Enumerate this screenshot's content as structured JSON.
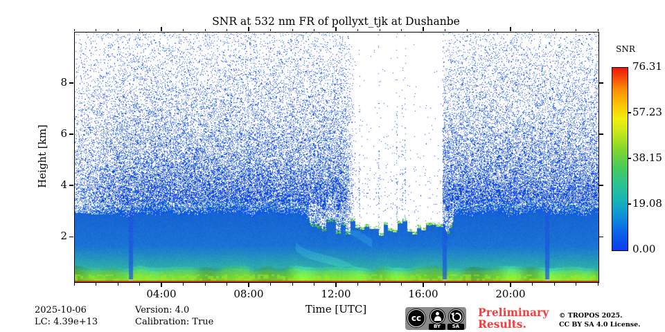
{
  "title": "SNR at 532 nm FR of pollyxt_tjk at Dushanbe",
  "axes": {
    "x": {
      "label": "Time [UTC]",
      "range_hours": [
        0,
        24
      ],
      "minor_tick_every_hours": 1,
      "major_ticks": [
        {
          "hour": 4,
          "label": "04:00"
        },
        {
          "hour": 8,
          "label": "08:00"
        },
        {
          "hour": 12,
          "label": "12:00"
        },
        {
          "hour": 16,
          "label": "16:00"
        },
        {
          "hour": 20,
          "label": "20:00"
        }
      ]
    },
    "y": {
      "label": "Height [km]",
      "range_km": [
        0.25,
        10
      ],
      "major_ticks": [
        {
          "km": 2,
          "label": "2"
        },
        {
          "km": 4,
          "label": "4"
        },
        {
          "km": 6,
          "label": "6"
        },
        {
          "km": 8,
          "label": "8"
        }
      ]
    }
  },
  "colorbar": {
    "label": "SNR",
    "min": 0,
    "max": 76.31,
    "ticks": [
      {
        "value": 76.31,
        "label": "76.31"
      },
      {
        "value": 57.23,
        "label": "57.23"
      },
      {
        "value": 38.15,
        "label": "38.15"
      },
      {
        "value": 19.08,
        "label": "19.08"
      },
      {
        "value": 0,
        "label": "0.00"
      }
    ],
    "gradient_stops": [
      {
        "frac": 0.0,
        "color": "#0a3df0"
      },
      {
        "frac": 0.1,
        "color": "#0a63e8"
      },
      {
        "frac": 0.2,
        "color": "#0f97d5"
      },
      {
        "frac": 0.28,
        "color": "#18b4b4"
      },
      {
        "frac": 0.36,
        "color": "#2cc293"
      },
      {
        "frac": 0.45,
        "color": "#45cb5c"
      },
      {
        "frac": 0.55,
        "color": "#7fd62e"
      },
      {
        "frac": 0.65,
        "color": "#c8e81a"
      },
      {
        "frac": 0.72,
        "color": "#f2ee0e"
      },
      {
        "frac": 0.8,
        "color": "#fbc206"
      },
      {
        "frac": 0.88,
        "color": "#fb8e06"
      },
      {
        "frac": 0.94,
        "color": "#f4500a"
      },
      {
        "frac": 1.0,
        "color": "#e91804"
      }
    ]
  },
  "footer": {
    "date": "2025-10-06",
    "lidar_constant": "LC: 4.39e+13",
    "version": "Version: 4.0",
    "calibration": "Calibration: True",
    "preliminary_line1": "Preliminary",
    "preliminary_line2": "Results.",
    "preliminary_color": "#fa3c3c",
    "copyright_line1": "© TROPOS 2025.",
    "copyright_line2": "CC BY SA 4.0 License."
  },
  "cc_badge": {
    "cc_label": "cc",
    "by_label": "BY",
    "sa_label": "SA"
  },
  "chart_data": {
    "type": "heatmap",
    "title": "SNR at 532 nm FR of pollyxt_tjk at Dushanbe",
    "xlabel": "Time [UTC]",
    "ylabel": "Height [km]",
    "x": {
      "unit": "hours UTC",
      "min": 0,
      "max": 24
    },
    "y": {
      "unit": "km",
      "min": 0.25,
      "max": 10
    },
    "value": {
      "name": "SNR",
      "min": 0,
      "max": 76.31
    },
    "description": "Lidar signal-to-noise ratio over one day; strong near-ground aerosol return (green/yellow below ~1 km, thin red ground line), solid low-SNR blue up to ~2.8 km, blue speckle noise above, cloud layer with green tops near 2-2.6 km between ~10:45 and ~17:20, near-blank daylight period ~13:00-16:50, and three dark-blue depolarization-calibration stripes.",
    "features": {
      "calibration_stripe_hours": [
        2.54,
        16.95,
        21.62
      ],
      "stripe_halfwidth_hours": 0.095,
      "aerosol_layer_top_km": 2.8,
      "near_ground_green_top_km": 0.8,
      "teal_band_top_km": 1.68,
      "cloud_layer": {
        "start_hour": 10.7,
        "end_hour": 17.35,
        "top_km_min": 2.08,
        "top_km_max": 2.65
      },
      "low_snr_white_period": {
        "start_hour": 12.95,
        "end_hour": 16.85
      },
      "white_gap_hours": [
        13.62,
        15.92
      ],
      "ground_return_km": 0.3
    },
    "palette": {
      "speckle": "#0b49e6",
      "speckle_near": "#105ce0",
      "blue_top": "#1664d4",
      "blue_bottom": "#1a74d4",
      "teal": "#2eacac",
      "green_high": "#3cbe82",
      "green_low": "#7dd630",
      "bright_green": "#a5e428",
      "red_line": "#c62f05",
      "stripe": "#1c56de",
      "stripe_bottom": "#b9e487"
    },
    "seed": 42
  }
}
